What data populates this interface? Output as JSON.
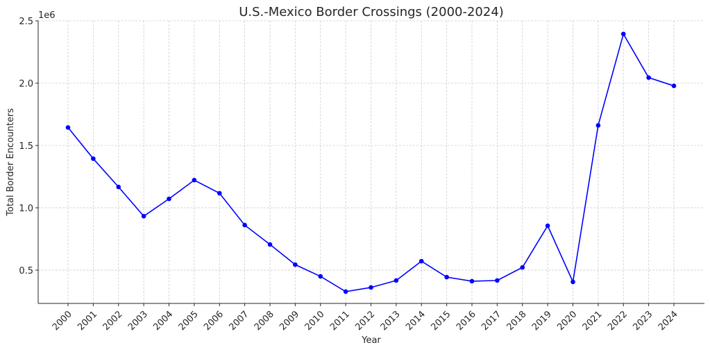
{
  "chart_data": {
    "type": "line",
    "title": "U.S.-Mexico Border Crossings (2000-2024)",
    "xlabel": "Year",
    "ylabel": "Total Border Encounters",
    "y_offset_label": "1e6",
    "x": [
      "2000",
      "2001",
      "2002",
      "2003",
      "2004",
      "2005",
      "2006",
      "2007",
      "2008",
      "2009",
      "2010",
      "2011",
      "2012",
      "2013",
      "2014",
      "2015",
      "2016",
      "2017",
      "2018",
      "2019",
      "2020",
      "2021",
      "2022",
      "2023",
      "2024"
    ],
    "series": [
      {
        "name": "Total Border Encounters",
        "color": "#0000ff",
        "values": [
          1644000,
          1394000,
          1167000,
          933000,
          1072000,
          1222000,
          1117000,
          861000,
          706000,
          544000,
          450000,
          328000,
          361000,
          417000,
          572000,
          444000,
          411000,
          417000,
          522000,
          856000,
          406000,
          1661000,
          2394000,
          2044000,
          1978000
        ]
      }
    ],
    "yticks": [
      0.5,
      1.0,
      1.5,
      2.0,
      2.5
    ],
    "ytick_labels": [
      "0.5",
      "1.0",
      "1.5",
      "2.0",
      "2.5"
    ],
    "ylim": [
      233000,
      2500000
    ],
    "grid": true,
    "legend": "none"
  }
}
